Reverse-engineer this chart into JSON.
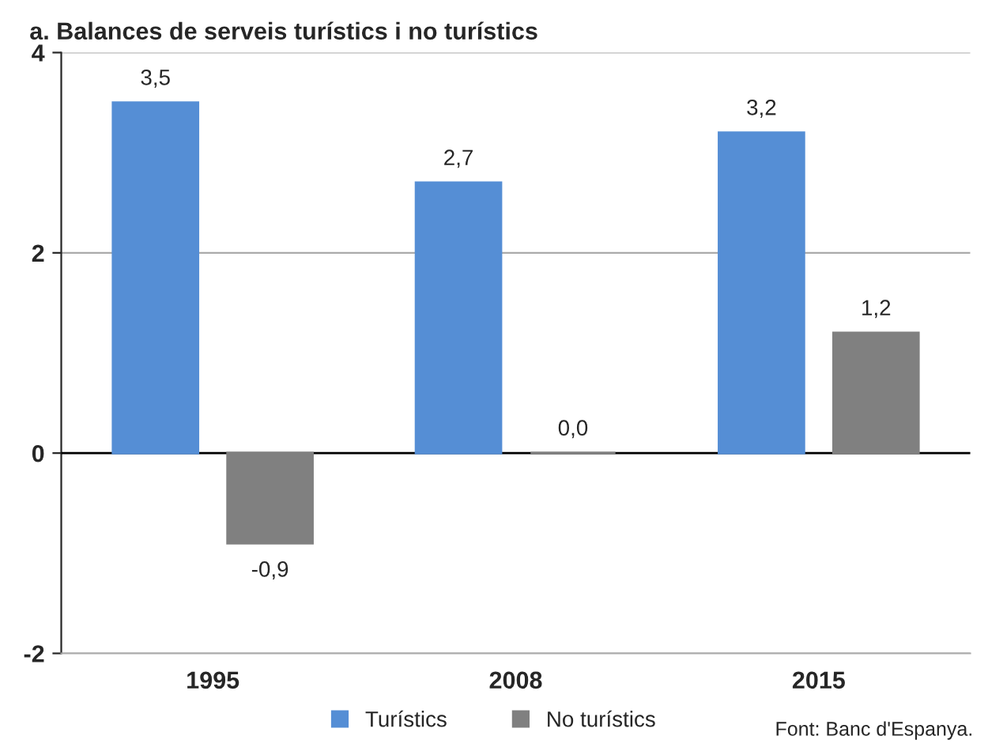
{
  "chart_data": {
    "type": "bar",
    "title": "a. Balances de serveis turístics i no turístics",
    "categories": [
      "1995",
      "2008",
      "2015"
    ],
    "series": [
      {
        "name": "Turístics",
        "color": "#558ed5",
        "values": [
          3.5,
          2.7,
          3.2
        ],
        "value_labels": [
          "3,5",
          "2,7",
          "3,2"
        ]
      },
      {
        "name": "No turístics",
        "color": "#808080",
        "values": [
          -0.9,
          0.0,
          1.2
        ],
        "value_labels": [
          "-0,9",
          "0,0",
          "1,2"
        ]
      }
    ],
    "ylim": [
      -2,
      4
    ],
    "yticks": [
      -2,
      0,
      2,
      4
    ],
    "grid": "y",
    "legend": "bottom",
    "annotations": [
      "Font: Banc d'Espanya."
    ]
  }
}
